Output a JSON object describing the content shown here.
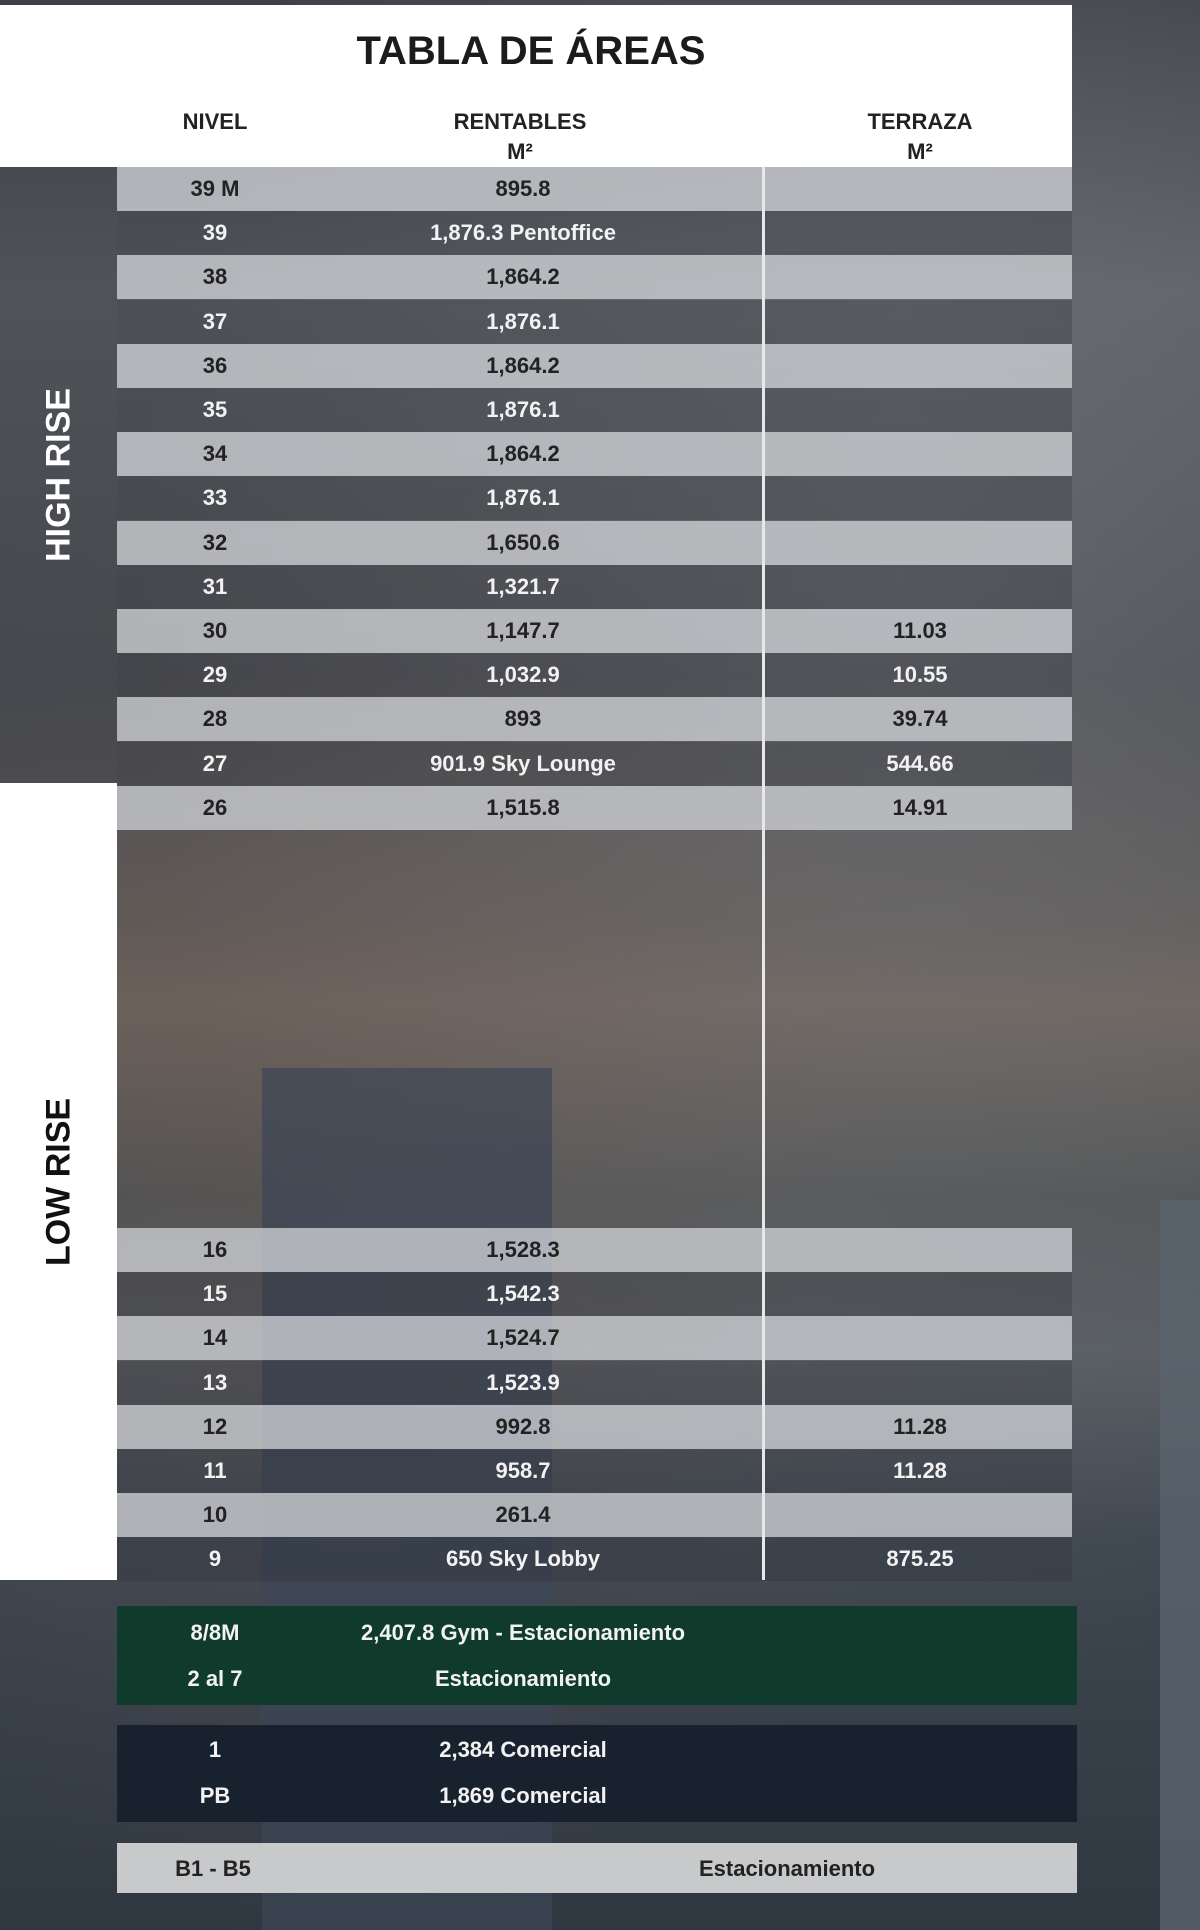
{
  "title": "TABLA DE ÁREAS",
  "headers": {
    "nivel": "NIVEL",
    "rentables": "RENTABLES",
    "rentables_unit": "M²",
    "terraza": "TERRAZA",
    "terraza_unit": "M²"
  },
  "sections": {
    "high_rise": "HIGH RISE",
    "low_rise": "LOW RISE"
  },
  "high_rows": [
    {
      "nivel": "39 M",
      "rentables": "895.8",
      "terraza": ""
    },
    {
      "nivel": "39",
      "rentables": "1,876.3 Pentoffice",
      "terraza": ""
    },
    {
      "nivel": "38",
      "rentables": "1,864.2",
      "terraza": ""
    },
    {
      "nivel": "37",
      "rentables": "1,876.1",
      "terraza": ""
    },
    {
      "nivel": "36",
      "rentables": "1,864.2",
      "terraza": ""
    },
    {
      "nivel": "35",
      "rentables": "1,876.1",
      "terraza": ""
    },
    {
      "nivel": "34",
      "rentables": "1,864.2",
      "terraza": ""
    },
    {
      "nivel": "33",
      "rentables": "1,876.1",
      "terraza": ""
    },
    {
      "nivel": "32",
      "rentables": "1,650.6",
      "terraza": ""
    },
    {
      "nivel": "31",
      "rentables": "1,321.7",
      "terraza": ""
    },
    {
      "nivel": "30",
      "rentables": "1,147.7",
      "terraza": "11.03"
    },
    {
      "nivel": "29",
      "rentables": "1,032.9",
      "terraza": "10.55"
    },
    {
      "nivel": "28",
      "rentables": "893",
      "terraza": "39.74"
    },
    {
      "nivel": "27",
      "rentables": "901.9 Sky Lounge",
      "terraza": "544.66"
    },
    {
      "nivel": "26",
      "rentables": "1,515.8",
      "terraza": "14.91"
    }
  ],
  "low_rows": [
    {
      "nivel": "16",
      "rentables": "1,528.3",
      "terraza": ""
    },
    {
      "nivel": "15",
      "rentables": "1,542.3",
      "terraza": ""
    },
    {
      "nivel": "14",
      "rentables": "1,524.7",
      "terraza": ""
    },
    {
      "nivel": "13",
      "rentables": "1,523.9",
      "terraza": ""
    },
    {
      "nivel": "12",
      "rentables": "992.8",
      "terraza": "11.28"
    },
    {
      "nivel": "11",
      "rentables": "958.7",
      "terraza": "11.28"
    },
    {
      "nivel": "10",
      "rentables": "261.4",
      "terraza": ""
    },
    {
      "nivel": "9",
      "rentables": "650 Sky Lobby",
      "terraza": "875.25"
    }
  ],
  "parking": [
    {
      "nivel": "8/8M",
      "desc": "2,407.8 Gym - Estacionamiento"
    },
    {
      "nivel": "2 al 7",
      "desc": "Estacionamiento"
    }
  ],
  "commercial": [
    {
      "nivel": "1",
      "desc": "2,384  Comercial"
    },
    {
      "nivel": "PB",
      "desc": "1,869  Comercial"
    }
  ],
  "basement": {
    "nivel": "B1 - B5",
    "desc": "Estacionamiento"
  },
  "colors": {
    "parking_green": "#0f3a2c",
    "commercial_navy": "#18222e",
    "basement_gray": "#c7c9cb"
  }
}
